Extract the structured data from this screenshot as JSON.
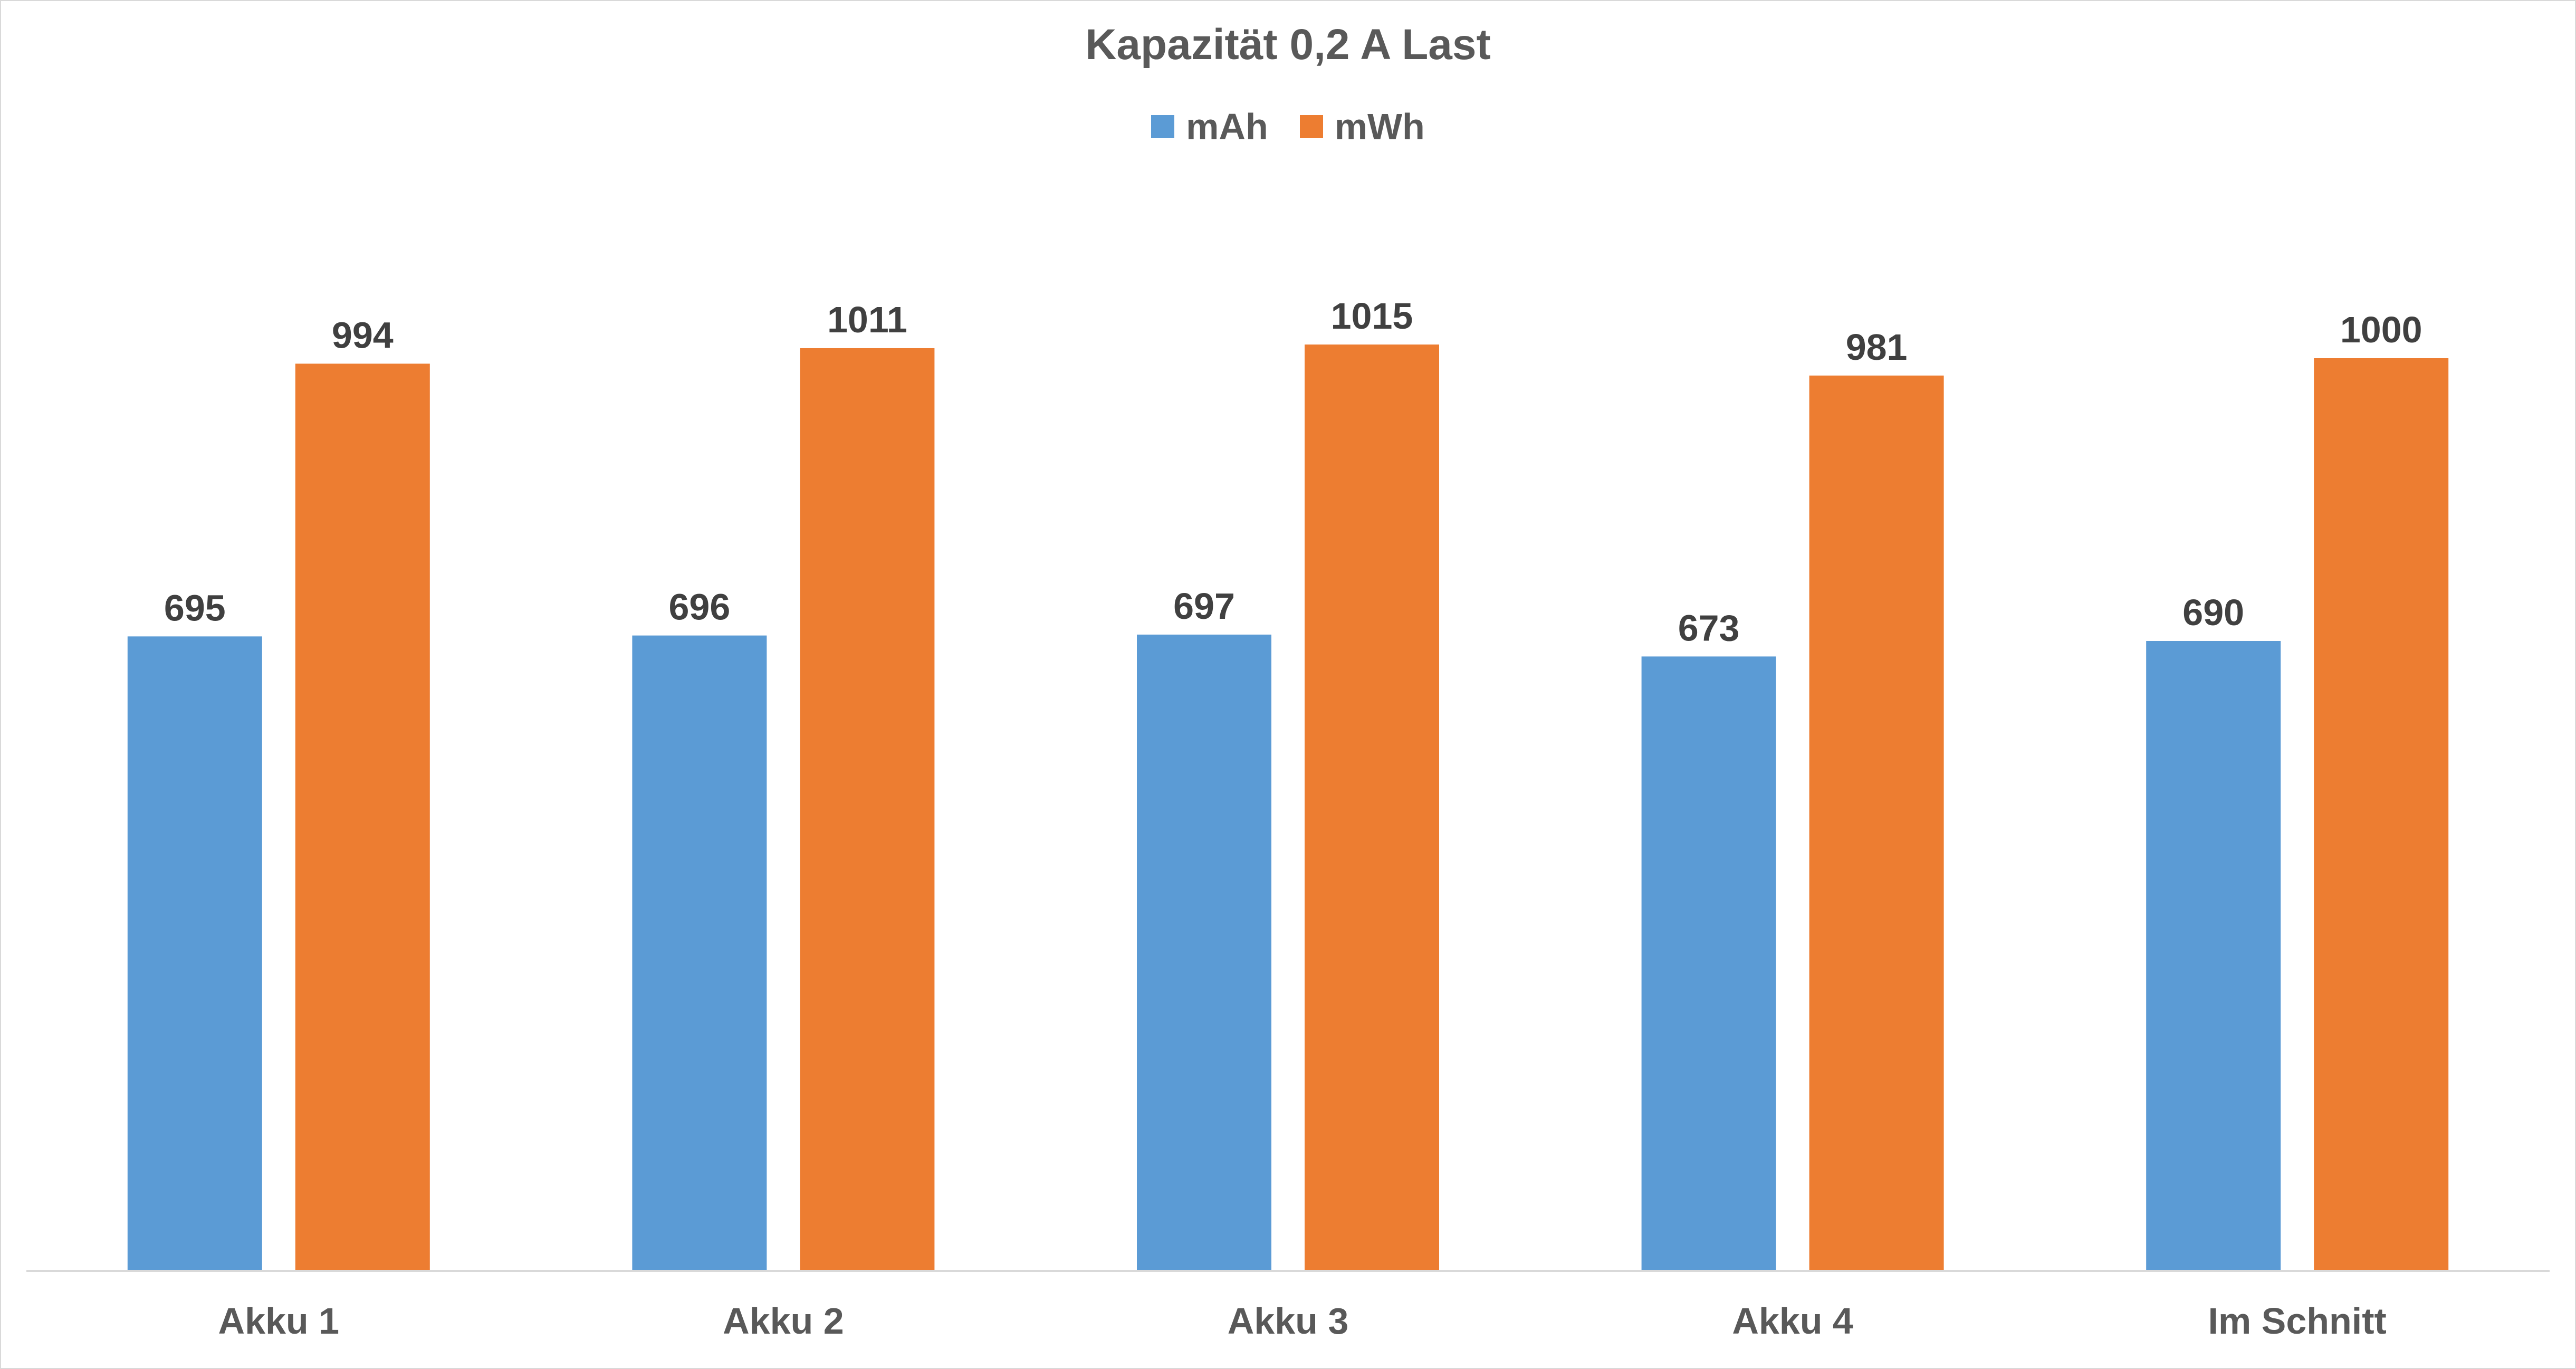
{
  "chart_data": {
    "type": "bar",
    "title": "Kapazität 0,2 A Last",
    "xlabel": "",
    "ylabel": "",
    "categories": [
      "Akku 1",
      "Akku 2",
      "Akku 3",
      "Akku 4",
      "Im Schnitt"
    ],
    "series": [
      {
        "name": "mAh",
        "color": "#5b9bd5",
        "values": [
          695,
          696,
          697,
          673,
          690
        ]
      },
      {
        "name": "mWh",
        "color": "#ed7d31",
        "values": [
          994,
          1011,
          1015,
          981,
          1000
        ]
      }
    ],
    "ylim": [
      0,
      1200
    ],
    "grid": false,
    "legend": "top-center",
    "data_labels": true
  }
}
